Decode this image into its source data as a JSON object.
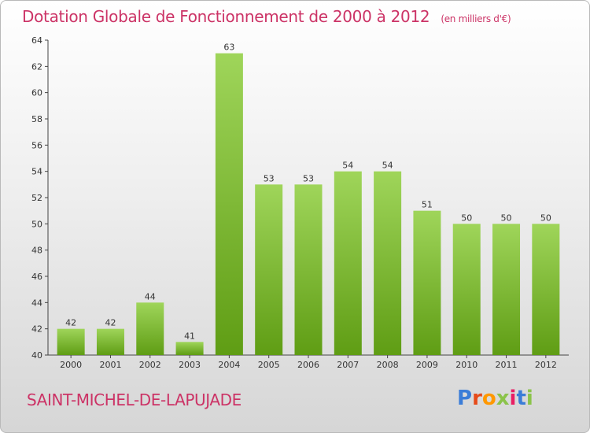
{
  "title": "Dotation Globale de Fonctionnement de 2000 à 2012",
  "subtitle": "(en milliers d'€)",
  "commune": "SAINT-MICHEL-DE-LAPUJADE",
  "logo": {
    "text": "Proxiti",
    "colors": [
      "#3b7dd8",
      "#e64a19",
      "#ff9800",
      "#8bc34a",
      "#e91e63",
      "#3b7dd8",
      "#8bc34a"
    ]
  },
  "colors": {
    "title": "#cc3366",
    "bar_top": "#9fd55a",
    "bar_bottom": "#5f9d14",
    "axis": "#444444"
  },
  "chart_data": {
    "type": "bar",
    "categories": [
      "2000",
      "2001",
      "2002",
      "2003",
      "2004",
      "2005",
      "2006",
      "2007",
      "2008",
      "2009",
      "2010",
      "2011",
      "2012"
    ],
    "values": [
      42,
      42,
      44,
      41,
      63,
      53,
      53,
      54,
      54,
      51,
      50,
      50,
      50
    ],
    "ylim": [
      40,
      64
    ],
    "yticks": [
      40,
      42,
      44,
      46,
      48,
      50,
      52,
      54,
      56,
      58,
      60,
      62,
      64
    ],
    "grid": false,
    "xlabel": "",
    "ylabel": ""
  }
}
